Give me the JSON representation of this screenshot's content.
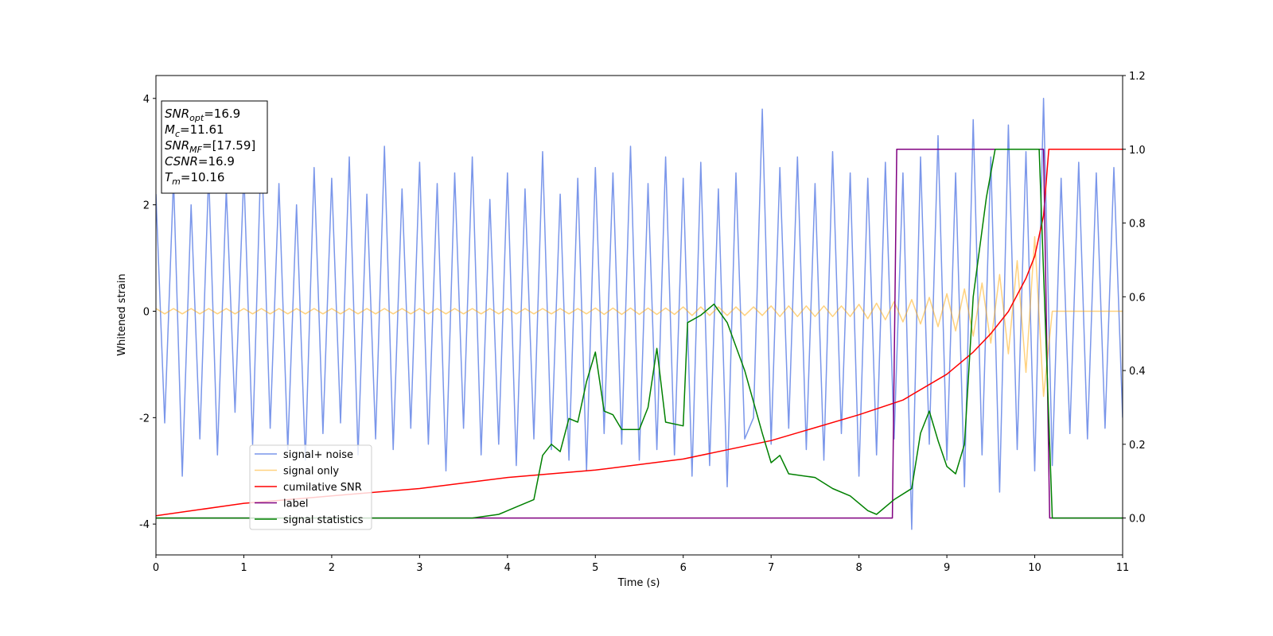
{
  "chart_data": {
    "type": "line",
    "x_label": "Time (s)",
    "y_label": "Whitened strain",
    "xlim": [
      0,
      11
    ],
    "xticks": [
      0,
      1,
      2,
      3,
      4,
      5,
      6,
      7,
      8,
      9,
      10,
      11
    ],
    "ylim": [
      -4.58,
      4.43
    ],
    "yticks": [
      -4,
      -2,
      0,
      2,
      4
    ],
    "y2lim": [
      -0.1,
      1.2
    ],
    "y2ticks": [
      {
        "value": 0,
        "label": "0.0"
      },
      0.2,
      0.4,
      0.6,
      0.8,
      {
        "value": 1,
        "label": "1.0"
      },
      1.2
    ],
    "legend": "lower left",
    "x": [
      0,
      0.1,
      0.2,
      0.3,
      0.4,
      0.5,
      0.6,
      0.7,
      0.8,
      0.9,
      1,
      1.1,
      1.2,
      1.3,
      1.4,
      1.5,
      1.6,
      1.7,
      1.8,
      1.9,
      2,
      2.1,
      2.2,
      2.3,
      2.4,
      2.5,
      2.6,
      2.7,
      2.8,
      2.9,
      3,
      3.1,
      3.2,
      3.3,
      3.4,
      3.5,
      3.6,
      3.7,
      3.8,
      3.9,
      4,
      4.1,
      4.2,
      4.3,
      4.4,
      4.5,
      4.6,
      4.7,
      4.8,
      4.9,
      5,
      5.1,
      5.2,
      5.3,
      5.4,
      5.5,
      5.6,
      5.7,
      5.8,
      5.9,
      6,
      6.1,
      6.2,
      6.3,
      6.4,
      6.5,
      6.6,
      6.7,
      6.8,
      6.9,
      7,
      7.1,
      7.2,
      7.3,
      7.4,
      7.5,
      7.6,
      7.7,
      7.8,
      7.9,
      8,
      8.1,
      8.2,
      8.3,
      8.4,
      8.5,
      8.6,
      8.7,
      8.8,
      8.9,
      9,
      9.1,
      9.2,
      9.3,
      9.4,
      9.5,
      9.6,
      9.7,
      9.8,
      9.9,
      10,
      10.1,
      10.2,
      10.3,
      10.4,
      10.5,
      10.6,
      10.7,
      10.8,
      10.9,
      11
    ],
    "annotation": [
      {
        "base": "SNR",
        "sub": "opt",
        "text": "=16.9"
      },
      {
        "base": "M",
        "sub": "c",
        "text": "=11.61"
      },
      {
        "base": "SNR",
        "sub": "MF",
        "text": "=[17.59]"
      },
      {
        "base": "CSNR",
        "text": "=16.9"
      },
      {
        "base": "T",
        "sub": "m",
        "text": "=10.16"
      }
    ],
    "series": [
      {
        "name": "signal+ noise",
        "color": "#4169e1",
        "alpha": 0.7,
        "values": [
          2.2,
          -2.1,
          2.5,
          -3.1,
          2.0,
          -2.4,
          2.6,
          -2.7,
          2.3,
          -1.9,
          2.6,
          -2.5,
          3.2,
          -2.2,
          2.4,
          -2.6,
          2.0,
          -2.8,
          2.7,
          -2.3,
          2.5,
          -2.1,
          2.9,
          -2.7,
          2.2,
          -2.4,
          3.1,
          -2.6,
          2.3,
          -2.2,
          2.8,
          -2.5,
          2.4,
          -3.0,
          2.6,
          -2.2,
          2.9,
          -2.7,
          2.1,
          -2.5,
          2.6,
          -2.9,
          2.3,
          -2.4,
          3.0,
          -2.6,
          2.2,
          -2.8,
          2.5,
          -3.0,
          2.7,
          -2.3,
          2.6,
          -2.5,
          3.1,
          -2.8,
          2.4,
          -2.6,
          2.9,
          -2.7,
          2.5,
          -3.1,
          2.8,
          -2.9,
          2.3,
          -3.3,
          2.6,
          -2.4,
          -2.0,
          3.8,
          -2.5,
          2.7,
          -2.2,
          2.9,
          -2.6,
          2.4,
          -2.8,
          3.0,
          -2.3,
          2.6,
          -3.1,
          2.5,
          -2.7,
          2.8,
          -2.4,
          2.6,
          -4.1,
          2.9,
          -2.5,
          3.3,
          -2.8,
          2.6,
          -3.3,
          3.6,
          -2.7,
          2.9,
          -3.4,
          3.5,
          -2.6,
          3.0,
          -3.0,
          4.0,
          -2.9,
          2.5,
          -2.3,
          2.8,
          -2.4,
          2.6,
          -2.2,
          2.7,
          -2.0
        ]
      },
      {
        "name": "signal only",
        "color": "#ffa500",
        "alpha": 0.5,
        "values": [
          0.05,
          -0.05,
          0.05,
          -0.05,
          0.05,
          -0.05,
          0.05,
          -0.05,
          0.05,
          -0.05,
          0.05,
          -0.05,
          0.05,
          -0.05,
          0.05,
          -0.05,
          0.05,
          -0.05,
          0.05,
          -0.05,
          0.05,
          -0.05,
          0.05,
          -0.05,
          0.05,
          -0.05,
          0.05,
          -0.05,
          0.05,
          -0.05,
          0.05,
          -0.05,
          0.05,
          -0.05,
          0.05,
          -0.05,
          0.05,
          -0.05,
          0.05,
          -0.05,
          0.05,
          -0.05,
          0.05,
          -0.05,
          0.05,
          -0.05,
          0.05,
          -0.05,
          0.05,
          -0.05,
          0.06,
          -0.06,
          0.06,
          -0.06,
          0.06,
          -0.06,
          0.06,
          -0.06,
          0.06,
          -0.06,
          0.08,
          -0.08,
          0.08,
          -0.08,
          0.08,
          -0.08,
          0.08,
          -0.08,
          0.08,
          -0.08,
          0.1,
          -0.1,
          0.1,
          -0.1,
          0.1,
          -0.1,
          0.1,
          -0.1,
          0.1,
          -0.1,
          0.13,
          -0.14,
          0.15,
          -0.16,
          0.18,
          -0.2,
          0.22,
          -0.24,
          0.26,
          -0.29,
          0.33,
          -0.37,
          0.42,
          -0.47,
          0.53,
          -0.6,
          0.69,
          -0.8,
          0.95,
          -1.15,
          1.4,
          -1.6,
          0,
          0,
          0,
          0,
          0,
          0,
          0,
          0,
          0
        ]
      },
      {
        "name": "cumilative SNR",
        "color": "#ff0000",
        "axis": "y2",
        "x": [
          0,
          1,
          2,
          3,
          4,
          5,
          6,
          7,
          8,
          8.5,
          9,
          9.3,
          9.5,
          9.7,
          9.9,
          10,
          10.1,
          10.16,
          11
        ],
        "values": [
          0.006,
          0.04,
          0.06,
          0.08,
          0.11,
          0.13,
          0.16,
          0.21,
          0.28,
          0.32,
          0.39,
          0.45,
          0.5,
          0.56,
          0.65,
          0.71,
          0.82,
          1.0,
          1.0
        ]
      },
      {
        "name": "label",
        "color": "#800080",
        "axis": "y2",
        "x": [
          0,
          8.38,
          8.43,
          10.1,
          10.17,
          11
        ],
        "values": [
          0,
          0,
          1,
          1,
          0,
          0
        ]
      },
      {
        "name": "signal statistics",
        "color": "#008000",
        "axis": "y2",
        "x": [
          0,
          3.6,
          3.9,
          4.1,
          4.3,
          4.4,
          4.5,
          4.6,
          4.7,
          4.8,
          4.9,
          5.0,
          5.1,
          5.2,
          5.3,
          5.5,
          5.6,
          5.7,
          5.8,
          6.0,
          6.05,
          6.2,
          6.35,
          6.5,
          6.7,
          6.9,
          7.0,
          7.1,
          7.2,
          7.5,
          7.7,
          7.9,
          8.1,
          8.2,
          8.4,
          8.6,
          8.7,
          8.8,
          8.9,
          9.0,
          9.1,
          9.2,
          9.3,
          9.45,
          9.55,
          9.7,
          10.05,
          10.2,
          11
        ],
        "values": [
          0,
          0,
          0.01,
          0.03,
          0.05,
          0.17,
          0.2,
          0.18,
          0.27,
          0.26,
          0.37,
          0.45,
          0.29,
          0.28,
          0.24,
          0.24,
          0.3,
          0.46,
          0.26,
          0.25,
          0.53,
          0.55,
          0.58,
          0.53,
          0.4,
          0.23,
          0.15,
          0.17,
          0.12,
          0.11,
          0.08,
          0.06,
          0.02,
          0.01,
          0.05,
          0.08,
          0.23,
          0.29,
          0.21,
          0.14,
          0.12,
          0.2,
          0.6,
          0.87,
          1.0,
          1.0,
          1.0,
          0,
          0
        ]
      }
    ]
  }
}
